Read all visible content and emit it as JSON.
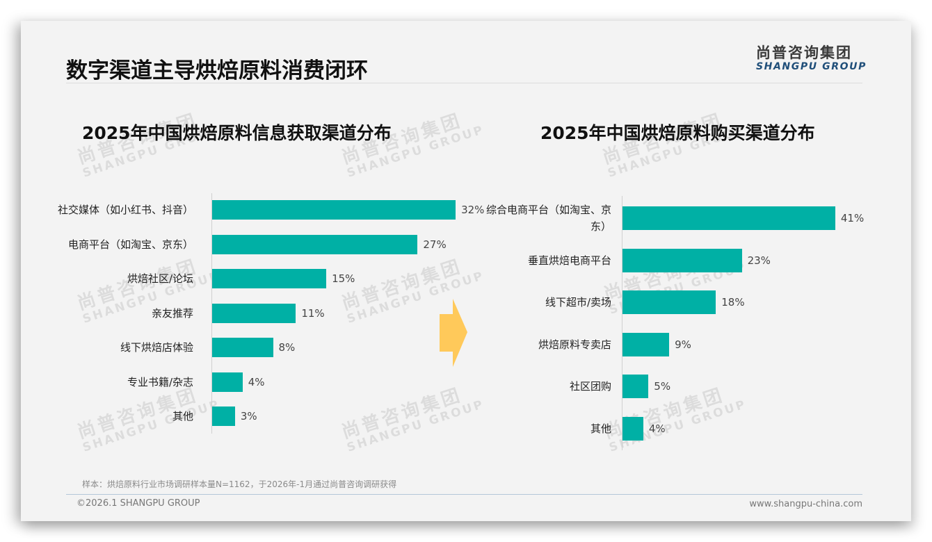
{
  "header": {
    "title": "数字渠道主导烘焙原料消费闭环",
    "logo_cn": "尚普咨询集团",
    "logo_en": "SHANGPU GROUP"
  },
  "watermark": {
    "cn": "尚普咨询集团",
    "en": "SHANGPU GROUP"
  },
  "arrow": {
    "color": "#ffc95a"
  },
  "colors": {
    "bar": "#00b0a5",
    "background": "#f3f3f3",
    "logo_en": "#1f4e79"
  },
  "footer": {
    "note": "样本：烘焙原料行业市场调研样本量N=1162，于2026年-1月通过尚普咨询调研获得",
    "copyright": "©2026.1 SHANGPU GROUP",
    "website": "www.shangpu-china.com"
  },
  "chart_data": [
    {
      "type": "bar",
      "orientation": "horizontal",
      "title": "2025年中国烘焙原料信息获取渠道分布",
      "categories": [
        "社交媒体（如小红书、抖音）",
        "电商平台（如淘宝、京东）",
        "烘焙社区/论坛",
        "亲友推荐",
        "线下烘焙店体验",
        "专业书籍/杂志",
        "其他"
      ],
      "values": [
        32,
        27,
        15,
        11,
        8,
        4,
        3
      ],
      "labels": [
        "32%",
        "27%",
        "15%",
        "11%",
        "8%",
        "4%",
        "3%"
      ],
      "unit": "%",
      "xlabel": "",
      "ylabel": "",
      "grid": false,
      "legend": null
    },
    {
      "type": "bar",
      "orientation": "horizontal",
      "title": "2025年中国烘焙原料购买渠道分布",
      "categories": [
        "综合电商平台（如淘宝、京东）",
        "垂直烘焙电商平台",
        "线下超市/卖场",
        "烘焙原料专卖店",
        "社区团购",
        "其他"
      ],
      "values": [
        41,
        23,
        18,
        9,
        5,
        4
      ],
      "labels": [
        "41%",
        "23%",
        "18%",
        "9%",
        "5%",
        "4%"
      ],
      "unit": "%",
      "xlabel": "",
      "ylabel": "",
      "grid": false,
      "legend": null
    }
  ]
}
